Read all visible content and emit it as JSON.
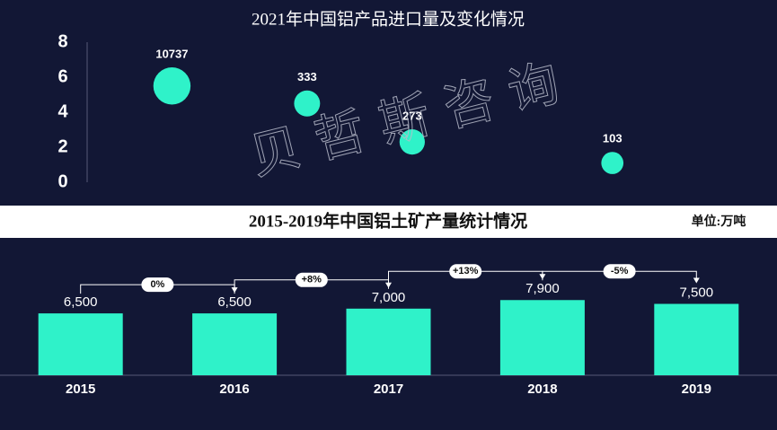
{
  "chart_data": [
    {
      "type": "bubble",
      "title": "2021年中国铝产品进口量及变化情况",
      "x": [
        1.0,
        2.35,
        3.4,
        5.4
      ],
      "xlim": [
        0,
        7
      ],
      "values": [
        5.5,
        4.5,
        2.3,
        1.1
      ],
      "sizes": [
        10737,
        333,
        273,
        103
      ],
      "ylim": [
        0,
        8
      ],
      "yticks": [
        0,
        2,
        4,
        6,
        8
      ],
      "color": "#2ff2c9",
      "watermark": "贝哲斯咨询"
    },
    {
      "type": "bar",
      "title": "2015-2019年中国铝土矿产量统计情况",
      "unit": "单位:万吨",
      "categories": [
        "2015",
        "2016",
        "2017",
        "2018",
        "2019"
      ],
      "values": [
        6500,
        6500,
        7000,
        7900,
        7500
      ],
      "value_labels": [
        "6,500",
        "6,500",
        "7,000",
        "7,900",
        "7,500"
      ],
      "annotations": [
        "0%",
        "+8%",
        "+13%",
        "-5%"
      ],
      "ylim": [
        0,
        10000
      ],
      "color": "#2ff2c9"
    }
  ]
}
